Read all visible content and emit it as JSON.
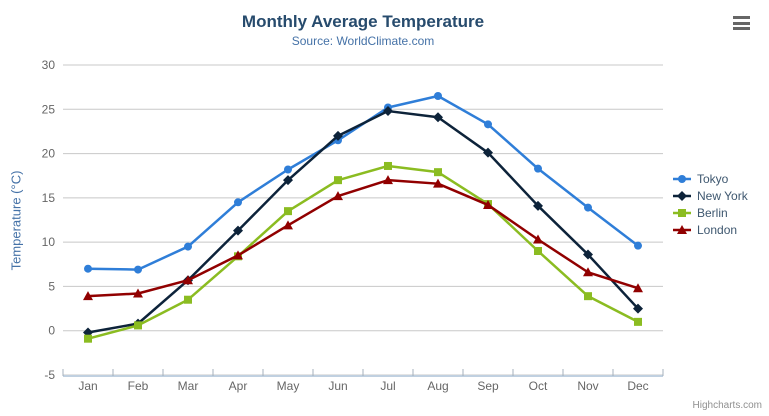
{
  "chart": {
    "title": "Monthly Average Temperature",
    "subtitle": "Source: WorldClimate.com",
    "credits": "Highcharts.com"
  },
  "chart_data": {
    "type": "line",
    "title": "Monthly Average Temperature",
    "subtitle": "Source: WorldClimate.com",
    "categories": [
      "Jan",
      "Feb",
      "Mar",
      "Apr",
      "May",
      "Jun",
      "Jul",
      "Aug",
      "Sep",
      "Oct",
      "Nov",
      "Dec"
    ],
    "series": [
      {
        "name": "Tokyo",
        "color": "#2f7ed8",
        "marker": "circle",
        "values": [
          7.0,
          6.9,
          9.5,
          14.5,
          18.2,
          21.5,
          25.2,
          26.5,
          23.3,
          18.3,
          13.9,
          9.6
        ]
      },
      {
        "name": "New York",
        "color": "#0d233a",
        "marker": "diamond",
        "values": [
          -0.2,
          0.8,
          5.7,
          11.3,
          17.0,
          22.0,
          24.8,
          24.1,
          20.1,
          14.1,
          8.6,
          2.5
        ]
      },
      {
        "name": "Berlin",
        "color": "#8bbc21",
        "marker": "square",
        "values": [
          -0.9,
          0.6,
          3.5,
          8.4,
          13.5,
          17.0,
          18.6,
          17.9,
          14.3,
          9.0,
          3.9,
          1.0
        ]
      },
      {
        "name": "London",
        "color": "#910000",
        "marker": "triangle",
        "values": [
          3.9,
          4.2,
          5.7,
          8.5,
          11.9,
          15.2,
          17.0,
          16.6,
          14.2,
          10.3,
          6.6,
          4.8
        ]
      }
    ],
    "xlabel": "",
    "ylabel": "Temperature (°C)",
    "ylim": [
      -5,
      30
    ],
    "ytick_step": 5,
    "grid": true,
    "legend_position": "right"
  },
  "style_colors": {
    "gridline": "#c8c8c8",
    "axis_line": "#c0d0e0",
    "tick": "#a5b1bd",
    "axis_label": "#666666",
    "title": "#274b6d",
    "subtitle": "#4572a7"
  }
}
